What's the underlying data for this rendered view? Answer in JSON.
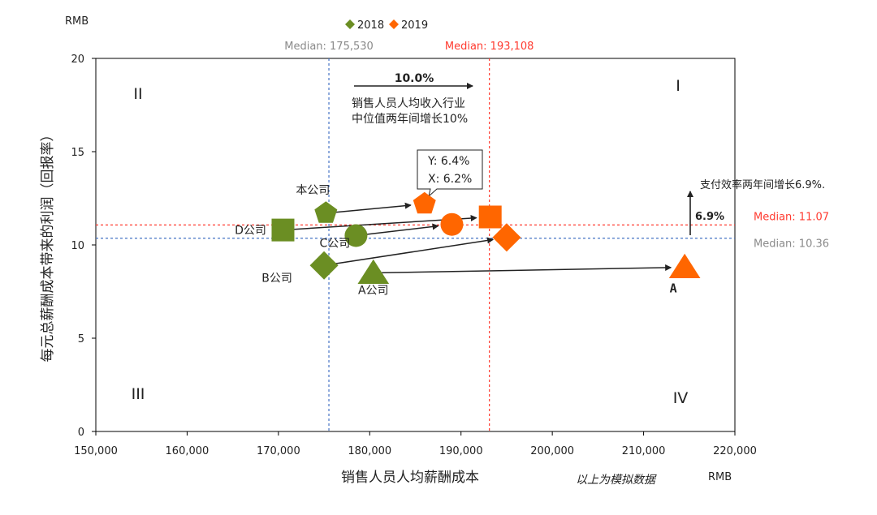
{
  "chart_data": {
    "type": "scatter",
    "title": "",
    "xlabel": "销售人员人均薪酬成本",
    "ylabel": "每元总薪酬成本带来的利润（回报率）",
    "x_unit": "RMB",
    "y_unit": "RMB",
    "xlim": [
      150000,
      220000
    ],
    "ylim": [
      0,
      20
    ],
    "x_ticks": [
      150000,
      160000,
      170000,
      180000,
      190000,
      200000,
      210000,
      220000
    ],
    "x_tick_labels": [
      "150,000",
      "160,000",
      "170,000",
      "180,000",
      "190,000",
      "200,000",
      "210,000",
      "220,000"
    ],
    "y_ticks": [
      0,
      5,
      10,
      15,
      20
    ],
    "y_tick_labels": [
      "0",
      "5",
      "10",
      "15",
      "20"
    ],
    "grid": false,
    "legend": {
      "position": "top-center",
      "items": [
        {
          "name": "2018",
          "color": "#6b8e23"
        },
        {
          "name": "2019",
          "color": "#ff6600"
        }
      ]
    },
    "series": [
      {
        "name": "2018",
        "color": "#6b8e23",
        "points": [
          {
            "company": "本公司",
            "label": "本公司",
            "shape": "pentagon",
            "x": 175200,
            "y": 11.7
          },
          {
            "company": "D公司",
            "label": "D公司",
            "shape": "square",
            "x": 170500,
            "y": 10.8
          },
          {
            "company": "C公司",
            "label": "C公司",
            "shape": "circle",
            "x": 178500,
            "y": 10.5
          },
          {
            "company": "B公司",
            "label": "B公司",
            "shape": "diamond",
            "x": 175000,
            "y": 8.9
          },
          {
            "company": "A公司",
            "label": "A公司",
            "shape": "triangle",
            "x": 180400,
            "y": 8.5
          }
        ]
      },
      {
        "name": "2019",
        "color": "#ff6600",
        "points": [
          {
            "company": "本公司",
            "label": "",
            "shape": "pentagon",
            "x": 186000,
            "y": 12.2
          },
          {
            "company": "D公司",
            "label": "",
            "shape": "square",
            "x": 193200,
            "y": 11.5
          },
          {
            "company": "C公司",
            "label": "",
            "shape": "circle",
            "x": 189000,
            "y": 11.1
          },
          {
            "company": "B公司",
            "label": "",
            "shape": "diamond",
            "x": 195000,
            "y": 10.4
          },
          {
            "company": "A公司",
            "label": "A",
            "shape": "triangle",
            "x": 214500,
            "y": 8.8
          }
        ]
      }
    ],
    "medians": {
      "x_2018": {
        "value": 175530,
        "label": "Median: 175,530",
        "color": "#4472c4",
        "text_color": "#8a8a8a"
      },
      "x_2019": {
        "value": 193108,
        "label": "Median: 193,108",
        "color": "#ff3b30",
        "text_color": "#ff3b30"
      },
      "y_2018": {
        "value": 10.36,
        "label": "Median: 10.36",
        "color": "#4472c4",
        "text_color": "#8a8a8a"
      },
      "y_2019": {
        "value": 11.07,
        "label": "Median: 11.07",
        "color": "#ff3b30",
        "text_color": "#ff3b30"
      }
    },
    "quadrants": [
      "I",
      "II",
      "III",
      "IV"
    ],
    "annotations": {
      "x_growth_value": "10.0%",
      "x_growth_line1": "销售人员人均收入行业",
      "x_growth_line2": "中位值两年间增长10%",
      "y_growth_value": "6.9%",
      "y_growth_text": "支付效率两年间增长6.9%.",
      "callout_y": "Y: 6.4%",
      "callout_x": "X: 6.2%",
      "footnote": "以上为模拟数据"
    }
  }
}
